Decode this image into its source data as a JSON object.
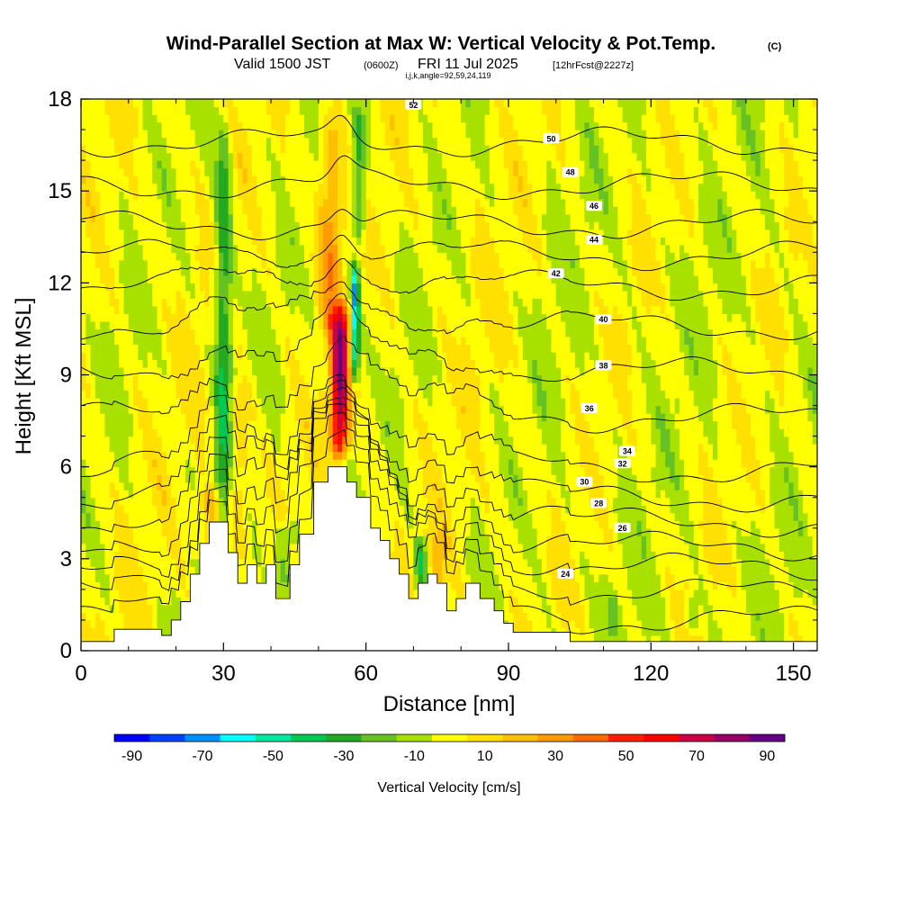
{
  "chart_data": {
    "type": "heatmap",
    "title": "Wind-Parallel Section at Max W: Vertical Velocity & Pot.Temp.",
    "title_mark": "(C)",
    "subtitle": {
      "valid": "Valid 1500 JST",
      "utc": "(0600Z)",
      "date": "FRI 11 Jul 2025",
      "forecast": "[12hrFcst@2227z]"
    },
    "index_line": "i,j,k,angle=92,59,24,119",
    "xlabel": "Distance [nm]",
    "ylabel": "Height [Kft MSL]",
    "xlim": [
      0,
      155
    ],
    "ylim": [
      0,
      18
    ],
    "xticks": [
      0,
      30,
      60,
      90,
      120,
      150
    ],
    "yticks": [
      0,
      3,
      6,
      9,
      12,
      15,
      18
    ],
    "colorbar": {
      "title": "Vertical Velocity [cm/s]",
      "range": [
        -95,
        95
      ],
      "step": 10,
      "tick_values": [
        -90,
        -70,
        -50,
        -30,
        -10,
        10,
        30,
        50,
        70,
        90
      ],
      "colors": [
        "#0000ff",
        "#0040ff",
        "#0090ff",
        "#00ffff",
        "#00e8a0",
        "#00c850",
        "#22aa22",
        "#66c222",
        "#a8e000",
        "#ffff00",
        "#ffe000",
        "#ffbf00",
        "#ff9a00",
        "#ff6a00",
        "#ff2000",
        "#ff0000",
        "#cc0044",
        "#990066",
        "#660088"
      ]
    },
    "terrain": [
      [
        0,
        0.3
      ],
      [
        7,
        0.3
      ],
      [
        7,
        0.7
      ],
      [
        17,
        0.7
      ],
      [
        17,
        0.5
      ],
      [
        19,
        0.5
      ],
      [
        19,
        1.0
      ],
      [
        21,
        1.0
      ],
      [
        21,
        1.6
      ],
      [
        23,
        1.6
      ],
      [
        23,
        2.5
      ],
      [
        25,
        2.5
      ],
      [
        25,
        3.5
      ],
      [
        27,
        3.5
      ],
      [
        27,
        4.2
      ],
      [
        31,
        4.2
      ],
      [
        31,
        3.2
      ],
      [
        33,
        3.2
      ],
      [
        33,
        2.2
      ],
      [
        35,
        2.2
      ],
      [
        35,
        2.8
      ],
      [
        37,
        2.8
      ],
      [
        37,
        2.2
      ],
      [
        39,
        2.2
      ],
      [
        39,
        2.8
      ],
      [
        41,
        2.8
      ],
      [
        41,
        1.7
      ],
      [
        44,
        1.7
      ],
      [
        44,
        2.8
      ],
      [
        46,
        2.8
      ],
      [
        46,
        3.8
      ],
      [
        49,
        3.8
      ],
      [
        49,
        5.5
      ],
      [
        52,
        5.5
      ],
      [
        52,
        6.0
      ],
      [
        56,
        6.0
      ],
      [
        56,
        5.5
      ],
      [
        58,
        5.5
      ],
      [
        58,
        5.0
      ],
      [
        61,
        5.0
      ],
      [
        61,
        4.0
      ],
      [
        63,
        4.0
      ],
      [
        63,
        3.6
      ],
      [
        65,
        3.6
      ],
      [
        65,
        3.0
      ],
      [
        67,
        3.0
      ],
      [
        67,
        2.5
      ],
      [
        69,
        2.5
      ],
      [
        69,
        1.7
      ],
      [
        71,
        1.7
      ],
      [
        71,
        2.2
      ],
      [
        73,
        2.2
      ],
      [
        73,
        2.5
      ],
      [
        75,
        2.5
      ],
      [
        75,
        2.2
      ],
      [
        77,
        2.2
      ],
      [
        77,
        1.3
      ],
      [
        79,
        1.3
      ],
      [
        79,
        1.7
      ],
      [
        81,
        1.7
      ],
      [
        81,
        2.2
      ],
      [
        84,
        2.2
      ],
      [
        84,
        1.7
      ],
      [
        87,
        1.7
      ],
      [
        87,
        1.3
      ],
      [
        89,
        1.3
      ],
      [
        89,
        0.9
      ],
      [
        91,
        0.9
      ],
      [
        91,
        0.6
      ],
      [
        103,
        0.6
      ],
      [
        103,
        0.3
      ],
      [
        155,
        0.3
      ]
    ],
    "theta_contours": [
      {
        "value": 24,
        "base": 1.0,
        "label_x": 102,
        "label_y": 2.5
      },
      {
        "value": 26,
        "base": 1.9,
        "label_x": 114,
        "label_y": 4.0
      },
      {
        "value": 28,
        "base": 2.7,
        "label_x": 109,
        "label_y": 4.8
      },
      {
        "value": 30,
        "base": 3.4,
        "label_x": 106,
        "label_y": 5.5
      },
      {
        "value": 32,
        "base": 4.2,
        "label_x": 114,
        "label_y": 6.1
      },
      {
        "value": 34,
        "base": 5.0,
        "label_x": 115,
        "label_y": 6.5
      },
      {
        "value": 36,
        "base": 5.9,
        "label_x": 107,
        "label_y": 7.9
      },
      {
        "value": 38,
        "base": 7.6,
        "label_x": 110,
        "label_y": 9.3
      },
      {
        "value": 40,
        "base": 9.1,
        "label_x": 110,
        "label_y": 10.8
      },
      {
        "value": 42,
        "base": 10.6,
        "label_x": 100,
        "label_y": 12.3
      },
      {
        "value": 44,
        "base": 11.9,
        "label_x": 108,
        "label_y": 13.4
      },
      {
        "value": 46,
        "base": 12.9,
        "label_x": 108,
        "label_y": 14.5
      },
      {
        "value": 48,
        "base": 13.9,
        "label_x": 103,
        "label_y": 15.6
      },
      {
        "value": 50,
        "base": 15.2,
        "label_x": 99,
        "label_y": 16.7
      },
      {
        "value": 52,
        "base": 16.6,
        "label_x": 70,
        "label_y": 17.8
      }
    ],
    "wbands": [
      {
        "x": 30,
        "w": 1.8,
        "amp": -38,
        "z0": 2.0,
        "z1": 18.0
      },
      {
        "x": 33,
        "w": 2.5,
        "amp": 20,
        "z0": 3.0,
        "z1": 9.0
      },
      {
        "x": 27.5,
        "w": 3.0,
        "amp": 25,
        "z0": 3.0,
        "z1": 5.5
      },
      {
        "x": 43,
        "w": 2.5,
        "amp": -25,
        "z0": 1.5,
        "z1": 4.5
      },
      {
        "x": 54.5,
        "w": 1.9,
        "amp": 80,
        "z0": 6.0,
        "z1": 11.5
      },
      {
        "x": 57.7,
        "w": 0.9,
        "amp": -70,
        "z0": 8.5,
        "z1": 13.0
      },
      {
        "x": 52.5,
        "w": 2.5,
        "amp": 30,
        "z0": 10.0,
        "z1": 18.0
      },
      {
        "x": 58.5,
        "w": 1.5,
        "amp": -32,
        "z0": 13.0,
        "z1": 18.0
      },
      {
        "x": 71.5,
        "w": 1.5,
        "amp": -35,
        "z0": 1.7,
        "z1": 3.8
      },
      {
        "x": 75,
        "w": 2.0,
        "amp": 15,
        "z0": 2.0,
        "z1": 4.0
      },
      {
        "x": 129,
        "w": 1.2,
        "amp": -22,
        "z0": 0.5,
        "z1": 2.0
      },
      {
        "x": 112,
        "w": 1.0,
        "amp": -18,
        "z0": 0.5,
        "z1": 2.0
      }
    ]
  }
}
